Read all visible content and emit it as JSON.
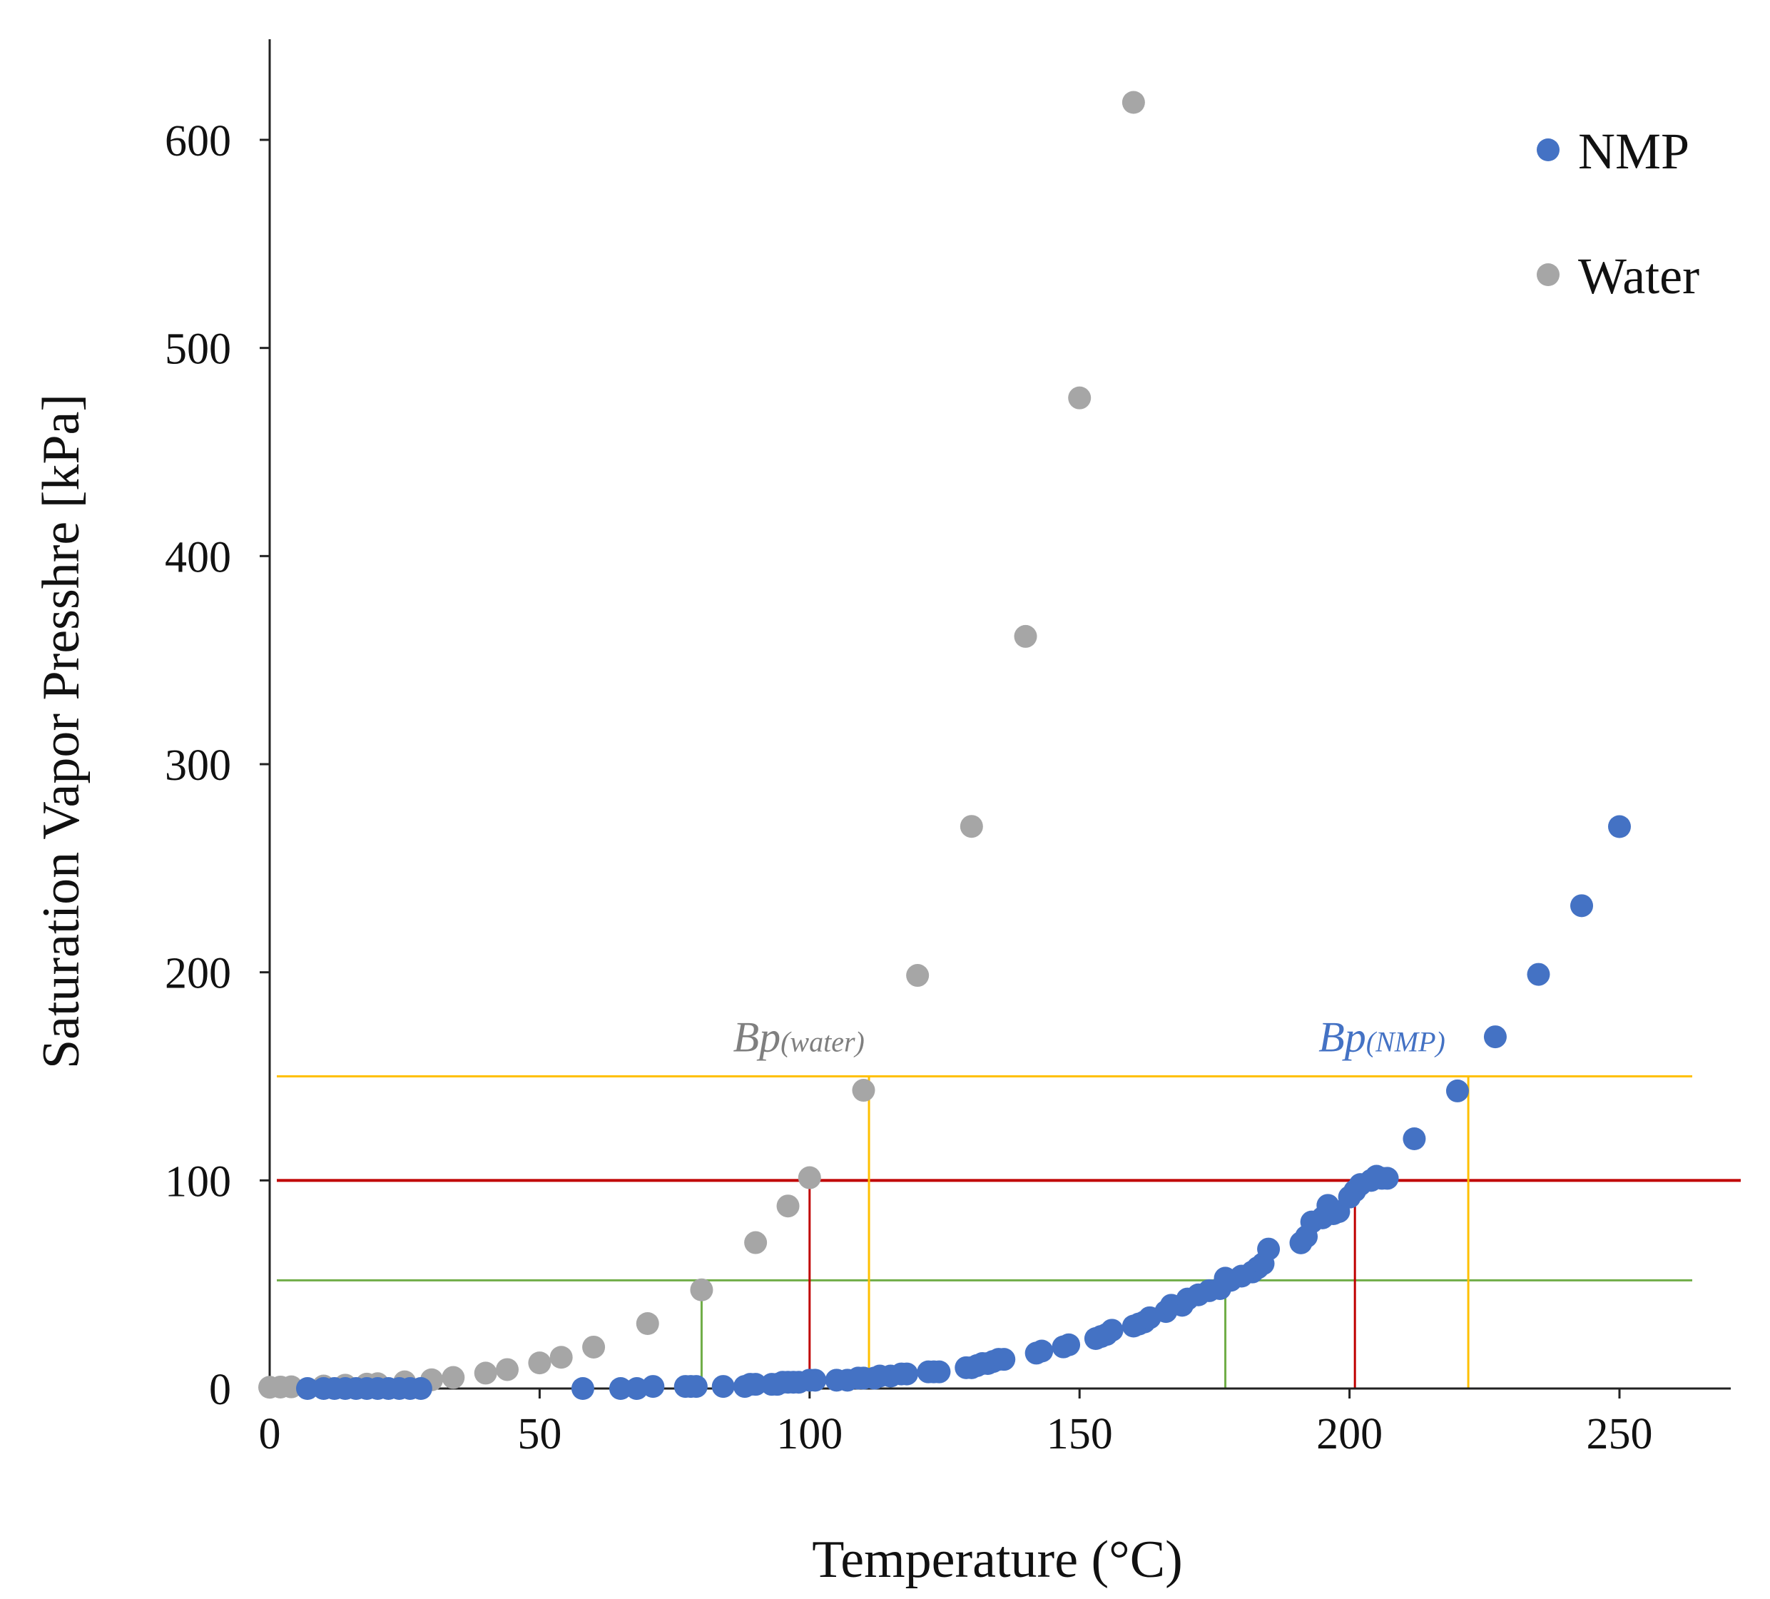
{
  "chart_data": {
    "type": "scatter",
    "xlabel": "Temperature (°C)",
    "ylabel": "Saturation Vapor Presshre [kPa]",
    "xlim": [
      0,
      270
    ],
    "ylim": [
      0,
      650
    ],
    "xticks": [
      0,
      50,
      100,
      150,
      200,
      250
    ],
    "yticks": [
      0,
      100,
      200,
      300,
      400,
      500,
      600
    ],
    "legend_position": "top-right",
    "series": [
      {
        "name": "NMP",
        "color": "#4472C4",
        "x": [
          7,
          10,
          12,
          14,
          16,
          18,
          20,
          22,
          24,
          26,
          28,
          58,
          65,
          68,
          71,
          77,
          78,
          79,
          84,
          88,
          89,
          90,
          93,
          94,
          95,
          96,
          97,
          98,
          100,
          101,
          105,
          107,
          109,
          110,
          112,
          113,
          115,
          117,
          118,
          122,
          123,
          124,
          129,
          130,
          131,
          132,
          133,
          134,
          135,
          136,
          142,
          143,
          147,
          148,
          153,
          154,
          155,
          156,
          160,
          161,
          162,
          163,
          166,
          167,
          169,
          170,
          172,
          174,
          176,
          177,
          178,
          180,
          182,
          183,
          184,
          185,
          191,
          192,
          193,
          195,
          196,
          197,
          198,
          200,
          201,
          202,
          204,
          205,
          206,
          207,
          212,
          220,
          227,
          235,
          243,
          250
        ],
        "y": [
          0,
          0,
          0,
          0,
          0,
          0,
          0,
          0,
          0,
          0,
          0,
          0,
          0,
          0,
          1,
          1,
          1,
          1,
          1,
          1,
          2,
          2,
          2,
          2,
          3,
          3,
          3,
          3,
          4,
          4,
          4,
          4,
          5,
          5,
          5,
          6,
          6,
          7,
          7,
          8,
          8,
          8,
          10,
          10,
          11,
          12,
          12,
          13,
          14,
          14,
          17,
          18,
          20,
          21,
          24,
          25,
          26,
          28,
          30,
          31,
          32,
          34,
          37,
          40,
          40,
          43,
          45,
          47,
          48,
          53,
          52,
          54,
          56,
          58,
          60,
          67,
          70,
          73,
          80,
          82,
          88,
          84,
          85,
          92,
          95,
          98,
          100,
          102,
          101,
          101,
          120,
          143,
          169,
          199,
          232,
          270
        ]
      },
      {
        "name": "Water",
        "color": "#A6A6A6",
        "x": [
          0,
          2,
          4,
          10,
          14,
          18,
          20,
          25,
          30,
          34,
          40,
          44,
          50,
          54,
          60,
          70,
          80,
          90,
          96,
          100,
          110,
          120,
          130,
          140,
          150,
          160
        ],
        "y": [
          0.6,
          0.7,
          0.8,
          1.2,
          1.6,
          2.1,
          2.3,
          3.2,
          4.2,
          5.3,
          7.4,
          9.1,
          12.3,
          15.0,
          19.9,
          31.2,
          47.4,
          70.1,
          87.7,
          101.3,
          143.3,
          198.5,
          270.1,
          361.4,
          476.0,
          618.0
        ]
      }
    ],
    "reference_lines": [
      {
        "name": "pressure-150",
        "orientation": "horizontal",
        "y": 150,
        "color": "#FFC000"
      },
      {
        "name": "pressure-100",
        "orientation": "horizontal",
        "y": 100,
        "color": "#C00000"
      },
      {
        "name": "pressure-52",
        "orientation": "horizontal",
        "y": 52,
        "color": "#70AD47"
      },
      {
        "name": "water-green-drop",
        "orientation": "vertical",
        "x": 80,
        "y": 52,
        "color": "#70AD47"
      },
      {
        "name": "water-red-drop",
        "orientation": "vertical",
        "x": 100,
        "y": 100,
        "color": "#C00000"
      },
      {
        "name": "water-yellow-drop",
        "orientation": "vertical",
        "x": 111,
        "y": 150,
        "color": "#FFC000"
      },
      {
        "name": "nmp-green-drop",
        "orientation": "vertical",
        "x": 177,
        "y": 52,
        "color": "#70AD47"
      },
      {
        "name": "nmp-red-drop",
        "orientation": "vertical",
        "x": 201,
        "y": 100,
        "color": "#C00000"
      },
      {
        "name": "nmp-yellow-drop",
        "orientation": "vertical",
        "x": 222,
        "y": 150,
        "color": "#FFC000"
      }
    ],
    "annotations": [
      {
        "name": "bp-water",
        "main": "Bp",
        "sub": "(water)",
        "x": 98,
        "y": 162,
        "color": "#7F7F7F"
      },
      {
        "name": "bp-nmp",
        "main": "Bp",
        "sub": "(NMP)",
        "x": 206,
        "y": 162,
        "color": "#4472C4"
      }
    ]
  }
}
